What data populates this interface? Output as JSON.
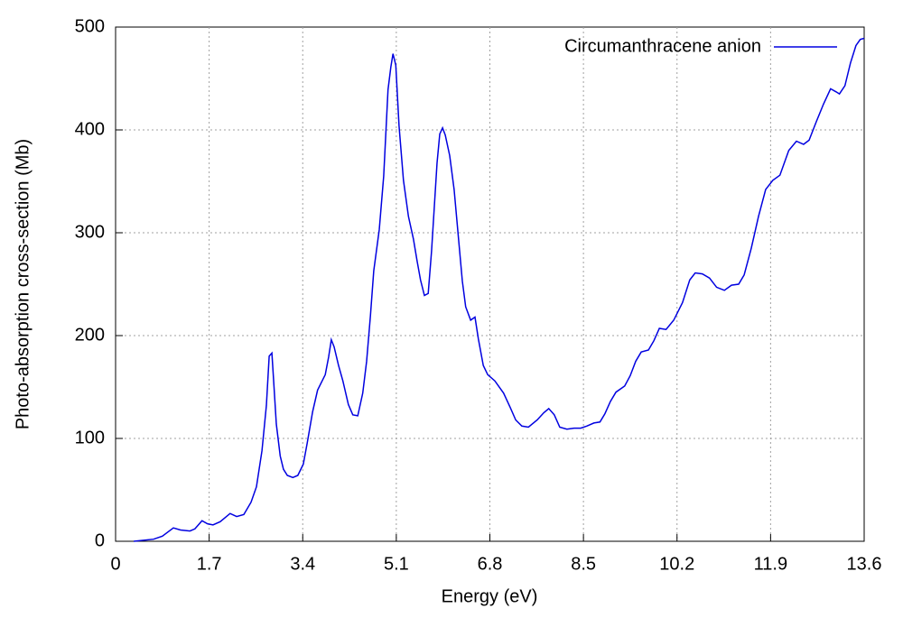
{
  "chart_data": {
    "type": "line",
    "xlabel": "Energy (eV)",
    "ylabel": "Photo-absorption cross-section (Mb)",
    "xlim": [
      0,
      13.6
    ],
    "xticks": [
      0,
      1.7,
      3.4,
      5.1,
      6.8,
      8.5,
      10.2,
      11.9,
      13.6
    ],
    "ylim": [
      0,
      500
    ],
    "yticks": [
      0,
      100,
      200,
      300,
      400,
      500
    ],
    "grid": true,
    "legend": "top-right",
    "series": [
      {
        "name": "Circumanthracene anion",
        "color": "#0000e0",
        "x": [
          0.33,
          0.69,
          0.85,
          1.05,
          1.18,
          1.35,
          1.44,
          1.57,
          1.67,
          1.77,
          1.9,
          2.08,
          2.2,
          2.33,
          2.46,
          2.56,
          2.66,
          2.74,
          2.79,
          2.84,
          2.87,
          2.92,
          2.99,
          3.05,
          3.12,
          3.22,
          3.31,
          3.41,
          3.48,
          3.58,
          3.67,
          3.81,
          3.87,
          3.92,
          3.97,
          4.05,
          4.13,
          4.23,
          4.31,
          4.4,
          4.49,
          4.56,
          4.63,
          4.69,
          4.79,
          4.87,
          4.95,
          5.0,
          5.04,
          5.09,
          5.15,
          5.23,
          5.32,
          5.41,
          5.48,
          5.54,
          5.61,
          5.68,
          5.74,
          5.84,
          5.89,
          5.94,
          5.99,
          6.07,
          6.15,
          6.23,
          6.3,
          6.36,
          6.45,
          6.53,
          6.59,
          6.68,
          6.76,
          6.89,
          7.05,
          7.17,
          7.27,
          7.38,
          7.5,
          7.66,
          7.78,
          7.87,
          7.97,
          8.07,
          8.2,
          8.33,
          8.45,
          8.56,
          8.69,
          8.8,
          8.89,
          8.99,
          9.09,
          9.25,
          9.35,
          9.45,
          9.55,
          9.68,
          9.78,
          9.88,
          10.0,
          10.14,
          10.3,
          10.43,
          10.53,
          10.66,
          10.79,
          10.92,
          11.06,
          11.19,
          11.32,
          11.42,
          11.55,
          11.68,
          11.81,
          11.94,
          12.07,
          12.23,
          12.37,
          12.5,
          12.6,
          12.73,
          12.86,
          12.99,
          13.09,
          13.15,
          13.25,
          13.35,
          13.45,
          13.53,
          13.6
        ],
        "values": [
          0,
          2,
          5,
          13,
          11,
          10,
          12,
          20,
          17,
          16,
          19,
          27,
          24,
          26,
          38,
          53,
          88,
          132,
          180,
          183,
          158,
          114,
          83,
          70,
          64,
          62,
          64,
          75,
          95,
          126,
          147,
          162,
          179,
          196,
          189,
          171,
          156,
          133,
          123,
          122,
          144,
          175,
          219,
          263,
          303,
          355,
          439,
          461,
          474,
          463,
          404,
          351,
          316,
          294,
          272,
          254,
          239,
          241,
          282,
          368,
          396,
          402,
          395,
          375,
          342,
          294,
          253,
          228,
          215,
          218,
          197,
          171,
          162,
          156,
          144,
          130,
          118,
          112,
          111,
          118,
          125,
          129,
          123,
          111,
          109,
          110,
          110,
          112,
          115,
          116,
          124,
          136,
          145,
          151,
          161,
          175,
          184,
          186,
          195,
          207,
          206,
          215,
          232,
          254,
          261,
          260,
          256,
          247,
          244,
          249,
          250,
          259,
          285,
          316,
          342,
          351,
          356,
          380,
          389,
          386,
          390,
          408,
          425,
          440,
          437,
          435,
          443,
          465,
          482,
          488,
          489
        ]
      }
    ]
  }
}
